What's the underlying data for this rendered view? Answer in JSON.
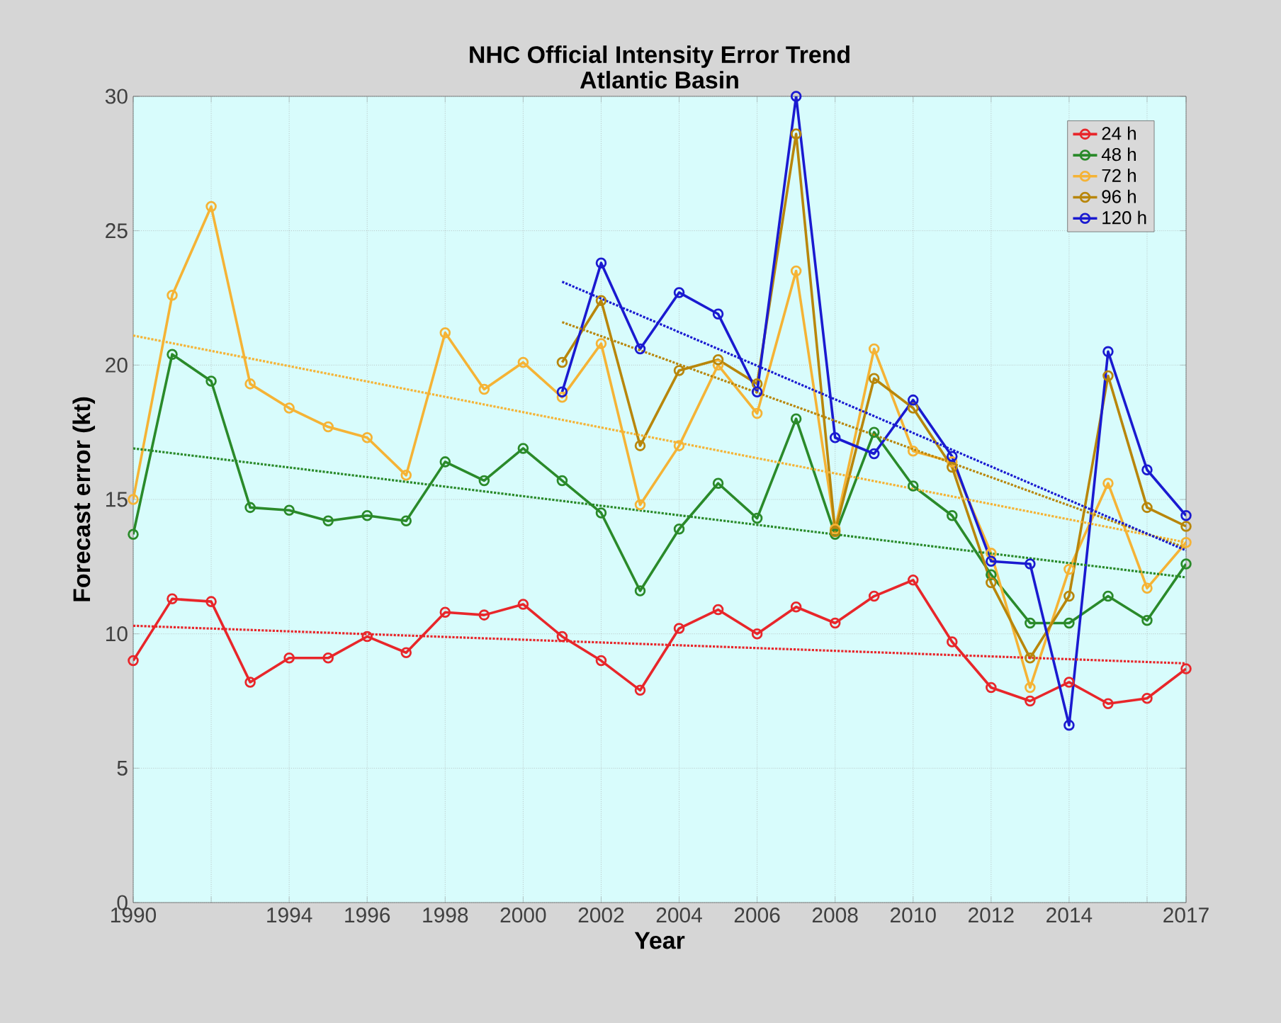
{
  "chart_data": {
    "type": "line",
    "title": "NHC Official Intensity Error Trend",
    "subtitle": "Atlantic Basin",
    "xlabel": "Year",
    "ylabel": "Forecast error (kt)",
    "x": [
      1990,
      1991,
      1992,
      1993,
      1994,
      1995,
      1996,
      1997,
      1998,
      1999,
      2000,
      2001,
      2002,
      2003,
      2004,
      2005,
      2006,
      2007,
      2008,
      2009,
      2010,
      2011,
      2012,
      2013,
      2014,
      2015,
      2016,
      2017
    ],
    "xlim": [
      1990,
      2017
    ],
    "ylim": [
      0,
      30
    ],
    "xticks": [
      1990,
      {
        "value": 1992,
        "label": null
      },
      1994,
      1996,
      1998,
      2000,
      2002,
      2004,
      2006,
      2008,
      2010,
      2012,
      2014,
      {
        "value": 2016,
        "label": null
      },
      2017
    ],
    "yticks": [
      0,
      5,
      10,
      15,
      20,
      25,
      30
    ],
    "grid": true,
    "legend": "top right",
    "marker": "circle",
    "line_style": "solid",
    "series": [
      {
        "name": "24 h",
        "color": "#e8262a",
        "values": [
          9.0,
          11.3,
          11.2,
          8.2,
          9.1,
          9.1,
          9.9,
          9.3,
          10.8,
          10.7,
          11.1,
          9.9,
          9.0,
          7.9,
          10.2,
          10.9,
          10.0,
          11.0,
          10.4,
          11.4,
          12.0,
          9.7,
          8.0,
          7.5,
          8.2,
          7.4,
          7.6,
          8.7
        ]
      },
      {
        "name": "48 h",
        "color": "#2a8a2a",
        "values": [
          13.7,
          20.4,
          19.4,
          14.7,
          14.6,
          14.2,
          14.4,
          14.2,
          16.4,
          15.7,
          16.9,
          15.7,
          14.5,
          11.6,
          13.9,
          15.6,
          14.3,
          18.0,
          13.7,
          17.5,
          15.5,
          14.4,
          12.2,
          10.4,
          10.4,
          11.4,
          10.5,
          12.6
        ]
      },
      {
        "name": "72 h",
        "color": "#f5b335",
        "values": [
          15.0,
          22.6,
          25.9,
          19.3,
          18.4,
          17.7,
          17.3,
          15.9,
          21.2,
          19.1,
          20.1,
          18.8,
          20.8,
          14.8,
          17.0,
          20.0,
          18.2,
          23.5,
          13.9,
          20.6,
          16.8,
          16.4,
          13.0,
          8.0,
          12.4,
          15.6,
          11.7,
          13.4
        ]
      },
      {
        "name": "96 h",
        "color": "#b8860b",
        "x": [
          2001,
          2002,
          2003,
          2004,
          2005,
          2006,
          2007,
          2008,
          2009,
          2010,
          2011,
          2012,
          2013,
          2014,
          2015,
          2016,
          2017
        ],
        "values": [
          20.1,
          22.4,
          17.0,
          19.8,
          20.2,
          19.3,
          28.6,
          13.8,
          19.5,
          18.4,
          16.2,
          11.9,
          9.1,
          11.4,
          19.6,
          14.7,
          14.0
        ]
      },
      {
        "name": "120 h",
        "color": "#1a1ad0",
        "x": [
          2001,
          2002,
          2003,
          2004,
          2005,
          2006,
          2007,
          2008,
          2009,
          2010,
          2011,
          2012,
          2013,
          2014,
          2015,
          2016,
          2017
        ],
        "values": [
          19.0,
          23.8,
          20.6,
          22.7,
          21.9,
          19.0,
          30.0,
          17.3,
          16.7,
          18.7,
          16.6,
          12.7,
          12.6,
          6.6,
          20.5,
          16.1,
          14.4
        ]
      },
      {
        "type": "line",
        "line_style": "dotted",
        "marker": "none",
        "color": "#e8262a",
        "x": [
          1990,
          2017
        ],
        "values": [
          10.3,
          8.9
        ]
      },
      {
        "type": "line",
        "line_style": "dotted",
        "marker": "none",
        "color": "#2a8a2a",
        "x": [
          1990,
          2017
        ],
        "values": [
          16.9,
          12.1
        ]
      },
      {
        "type": "line",
        "line_style": "dotted",
        "marker": "none",
        "color": "#f5b335",
        "x": [
          1990,
          2017
        ],
        "values": [
          21.1,
          13.4
        ]
      },
      {
        "type": "line",
        "line_style": "dotted",
        "marker": "none",
        "color": "#b8860b",
        "x": [
          2001,
          2017
        ],
        "values": [
          21.6,
          13.2
        ]
      },
      {
        "type": "line",
        "line_style": "dotted",
        "marker": "none",
        "color": "#1a1ad0",
        "x": [
          2001,
          2017
        ],
        "values": [
          23.1,
          13.1
        ]
      }
    ]
  }
}
